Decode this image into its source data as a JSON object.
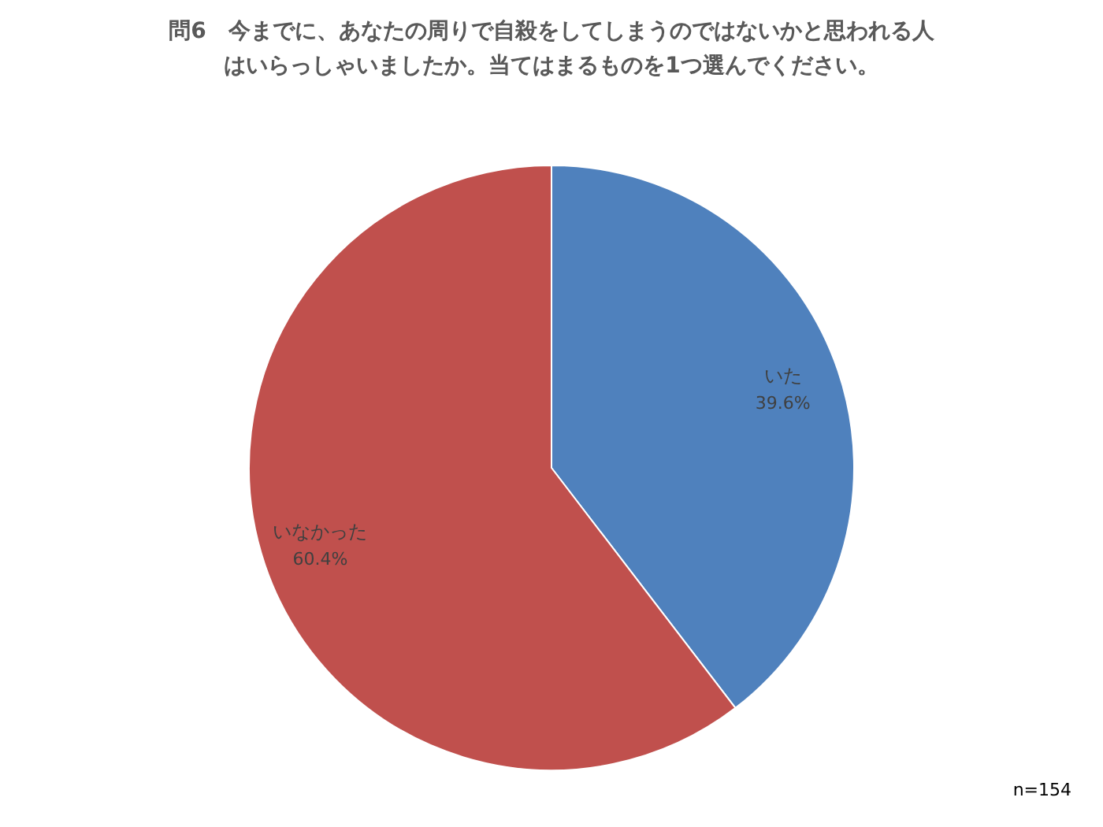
{
  "chart_data": {
    "type": "pie",
    "title": "問6　今までに、あなたの周りで自殺をしてしまうのではないかと思われる人はいらっしゃいましたか。当てはまるものを1つ選んでください。",
    "categories": [
      "いた",
      "いなかった"
    ],
    "values": [
      39.6,
      60.4
    ],
    "colors": [
      "#4f81bd",
      "#c0504d"
    ],
    "value_labels": [
      "39.6%",
      "60.4%"
    ],
    "annotations": [
      "n=154"
    ]
  }
}
